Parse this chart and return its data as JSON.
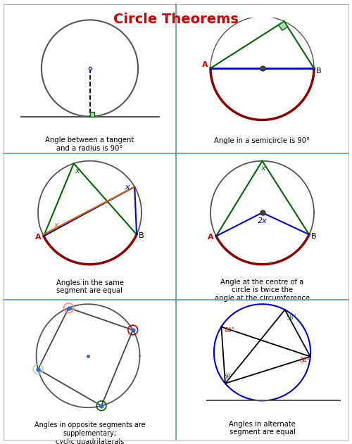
{
  "title": "Circle Theorems",
  "title_color": "#cc0000",
  "title_fontsize": 14,
  "bg_color": "#ffffff",
  "grid_line_color": "#5599bb",
  "caption_fontsize": 7.2,
  "captions": [
    "Angle between a tangent\nand a radius is 90°",
    "Angle in a semicircle is 90°",
    "Angles in the same\nsegment are equal",
    "Angle at the centre of a\ncircle is twice the\nangle at the circumference",
    "Angles in opposite segments are\nsupplementary;\ncyclic quadrilaterals",
    "Angles in alternate\nsegment are equal"
  ],
  "dark_red": "#8b0000",
  "green": "#006600",
  "light_green": "#aaddaa",
  "blue": "#0000cc",
  "orange": "#cc6600",
  "gray": "#555555",
  "red_label": "#cc0000"
}
